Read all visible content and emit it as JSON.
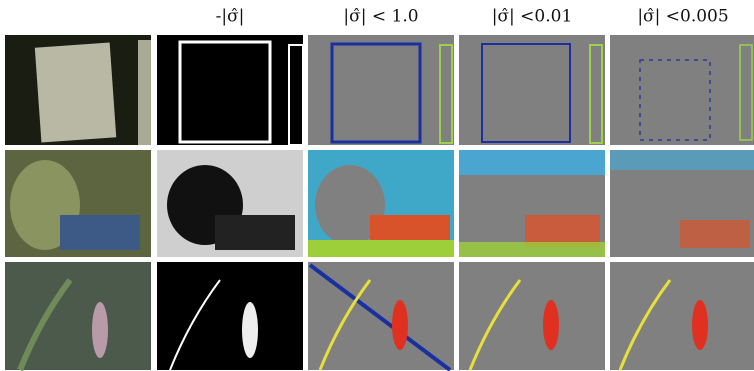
{
  "figure": {
    "column_headers": [
      "-|σ̂|",
      "|σ̂| < 1.0",
      "|σ̂| <0.01",
      "|σ̂| <0.005"
    ]
  }
}
